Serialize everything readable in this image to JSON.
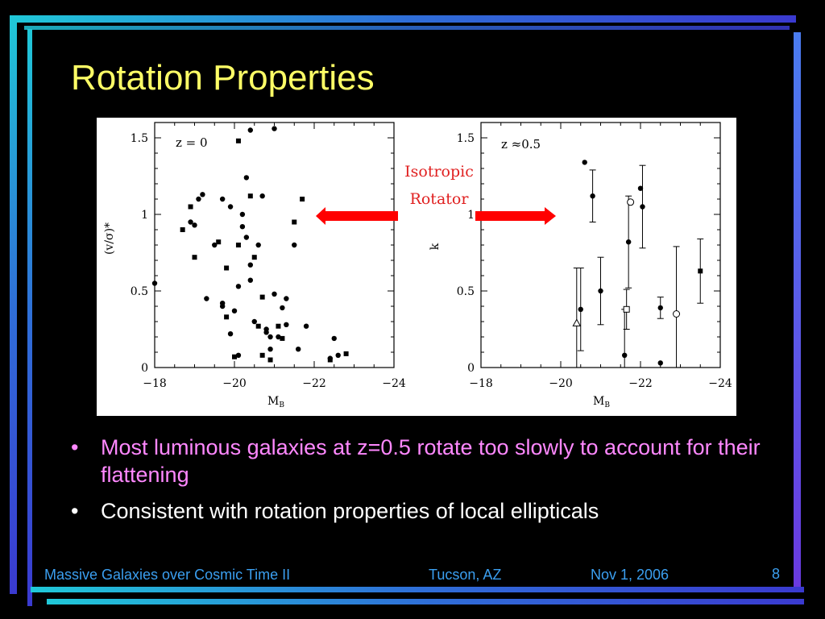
{
  "slide": {
    "title": "Rotation Properties",
    "bullet_glyph": "•",
    "bullets": [
      "Most luminous galaxies at z=0.5 rotate too slowly to account for their flattening",
      "Consistent with rotation properties of local ellipticals"
    ],
    "annotation": {
      "line1": "Isotropic",
      "line2": "Rotator",
      "color": "#e02020",
      "arrow_color": "#ff0000"
    },
    "footer": {
      "left": "Massive Galaxies over Cosmic Time II",
      "center": "Tucson, AZ",
      "right": "Nov 1, 2006"
    },
    "page_number": "8",
    "colors": {
      "title": "#ffff66",
      "bullet1": "#ff88ff",
      "bullet2": "#ffffff",
      "footer": "#3b9ff0",
      "background": "#000000"
    }
  },
  "chart_data": [
    {
      "type": "scatter",
      "panel_label": "z = 0",
      "xlabel": "M",
      "xlabel_sub": "B",
      "ylabel": "(v/σ)*",
      "xlim": [
        -18,
        -24
      ],
      "ylim": [
        0,
        1.6
      ],
      "xticks": [
        "−18",
        "−20",
        "−22",
        "−24"
      ],
      "yticks": [
        "0",
        "0.5",
        "1",
        "1.5"
      ],
      "points": [
        {
          "x": -18.0,
          "y": 0.55
        },
        {
          "x": -18.7,
          "y": 0.9
        },
        {
          "x": -18.9,
          "y": 0.95
        },
        {
          "x": -19.0,
          "y": 0.93
        },
        {
          "x": -18.9,
          "y": 1.05
        },
        {
          "x": -19.1,
          "y": 1.1
        },
        {
          "x": -19.2,
          "y": 1.13
        },
        {
          "x": -19.0,
          "y": 0.72
        },
        {
          "x": -19.3,
          "y": 0.45
        },
        {
          "x": -19.5,
          "y": 0.8
        },
        {
          "x": -19.6,
          "y": 0.82
        },
        {
          "x": -19.7,
          "y": 1.1
        },
        {
          "x": -19.9,
          "y": 1.05
        },
        {
          "x": -19.8,
          "y": 0.65
        },
        {
          "x": -19.7,
          "y": 0.42
        },
        {
          "x": -19.7,
          "y": 0.4
        },
        {
          "x": -19.8,
          "y": 0.33
        },
        {
          "x": -19.9,
          "y": 0.22
        },
        {
          "x": -20.0,
          "y": 0.37
        },
        {
          "x": -20.0,
          "y": 0.07
        },
        {
          "x": -20.1,
          "y": 0.08
        },
        {
          "x": -20.1,
          "y": 0.53
        },
        {
          "x": -20.1,
          "y": 0.8
        },
        {
          "x": -20.2,
          "y": 0.92
        },
        {
          "x": -20.2,
          "y": 1.0
        },
        {
          "x": -20.1,
          "y": 1.48
        },
        {
          "x": -20.3,
          "y": 1.24
        },
        {
          "x": -20.4,
          "y": 1.55
        },
        {
          "x": -20.4,
          "y": 1.12
        },
        {
          "x": -20.3,
          "y": 0.85
        },
        {
          "x": -20.4,
          "y": 0.67
        },
        {
          "x": -20.5,
          "y": 0.72
        },
        {
          "x": -20.4,
          "y": 0.57
        },
        {
          "x": -20.5,
          "y": 0.3
        },
        {
          "x": -20.6,
          "y": 0.27
        },
        {
          "x": -20.6,
          "y": 0.8
        },
        {
          "x": -20.7,
          "y": 1.12
        },
        {
          "x": -20.7,
          "y": 0.46
        },
        {
          "x": -20.8,
          "y": 0.23
        },
        {
          "x": -20.8,
          "y": 0.25
        },
        {
          "x": -20.7,
          "y": 0.08
        },
        {
          "x": -20.9,
          "y": 0.2
        },
        {
          "x": -20.9,
          "y": 0.12
        },
        {
          "x": -20.9,
          "y": 0.05
        },
        {
          "x": -21.0,
          "y": 1.56
        },
        {
          "x": -21.0,
          "y": 0.48
        },
        {
          "x": -21.1,
          "y": 0.27
        },
        {
          "x": -21.1,
          "y": 0.2
        },
        {
          "x": -21.2,
          "y": 0.39
        },
        {
          "x": -21.2,
          "y": 0.19
        },
        {
          "x": -21.3,
          "y": 0.45
        },
        {
          "x": -21.3,
          "y": 0.28
        },
        {
          "x": -21.5,
          "y": 0.95
        },
        {
          "x": -21.5,
          "y": 0.8
        },
        {
          "x": -21.6,
          "y": 0.12
        },
        {
          "x": -21.7,
          "y": 1.1
        },
        {
          "x": -21.8,
          "y": 0.27
        },
        {
          "x": -22.4,
          "y": 0.06
        },
        {
          "x": -22.4,
          "y": 0.05
        },
        {
          "x": -22.5,
          "y": 0.19
        },
        {
          "x": -22.6,
          "y": 0.08
        },
        {
          "x": -22.8,
          "y": 0.09
        }
      ]
    },
    {
      "type": "scatter",
      "panel_label": "z ≈0.5",
      "xlabel": "M",
      "xlabel_sub": "B",
      "ylabel": "k",
      "xlim": [
        -18,
        -24
      ],
      "ylim": [
        0,
        1.6
      ],
      "xticks": [
        "−18",
        "−20",
        "−22",
        "−24"
      ],
      "yticks": [
        "0",
        "0.5",
        "1",
        "1.5"
      ],
      "points": [
        {
          "x": -20.4,
          "y": 0.29,
          "err": 0.36,
          "marker": "triangle"
        },
        {
          "x": -20.5,
          "y": 0.38,
          "err": 0.27,
          "marker": "circle-filled"
        },
        {
          "x": -20.6,
          "y": 1.34,
          "err": 0.0,
          "marker": "circle-filled"
        },
        {
          "x": -20.8,
          "y": 1.12,
          "err": 0.17,
          "marker": "circle-filled"
        },
        {
          "x": -21.0,
          "y": 0.5,
          "err": 0.22,
          "marker": "circle-filled"
        },
        {
          "x": -21.6,
          "y": 0.08,
          "err": 0.3,
          "marker": "circle-filled"
        },
        {
          "x": -21.65,
          "y": 0.38,
          "err": 0.13,
          "marker": "square-open"
        },
        {
          "x": -21.7,
          "y": 0.82,
          "err": 0.3,
          "marker": "circle-filled"
        },
        {
          "x": -21.75,
          "y": 1.08,
          "err": 0.0,
          "marker": "circle-open"
        },
        {
          "x": -22.0,
          "y": 1.17,
          "err": 0.0,
          "marker": "circle-filled"
        },
        {
          "x": -22.05,
          "y": 1.05,
          "err": 0.27,
          "marker": "circle-filled"
        },
        {
          "x": -22.5,
          "y": 0.39,
          "err": 0.07,
          "marker": "circle-filled"
        },
        {
          "x": -22.5,
          "y": 0.03,
          "err": 0.0,
          "marker": "circle-filled"
        },
        {
          "x": -22.9,
          "y": 0.35,
          "err": 0.44,
          "marker": "circle-open"
        },
        {
          "x": -23.5,
          "y": 0.63,
          "err": 0.21,
          "marker": "square-filled"
        }
      ]
    }
  ]
}
